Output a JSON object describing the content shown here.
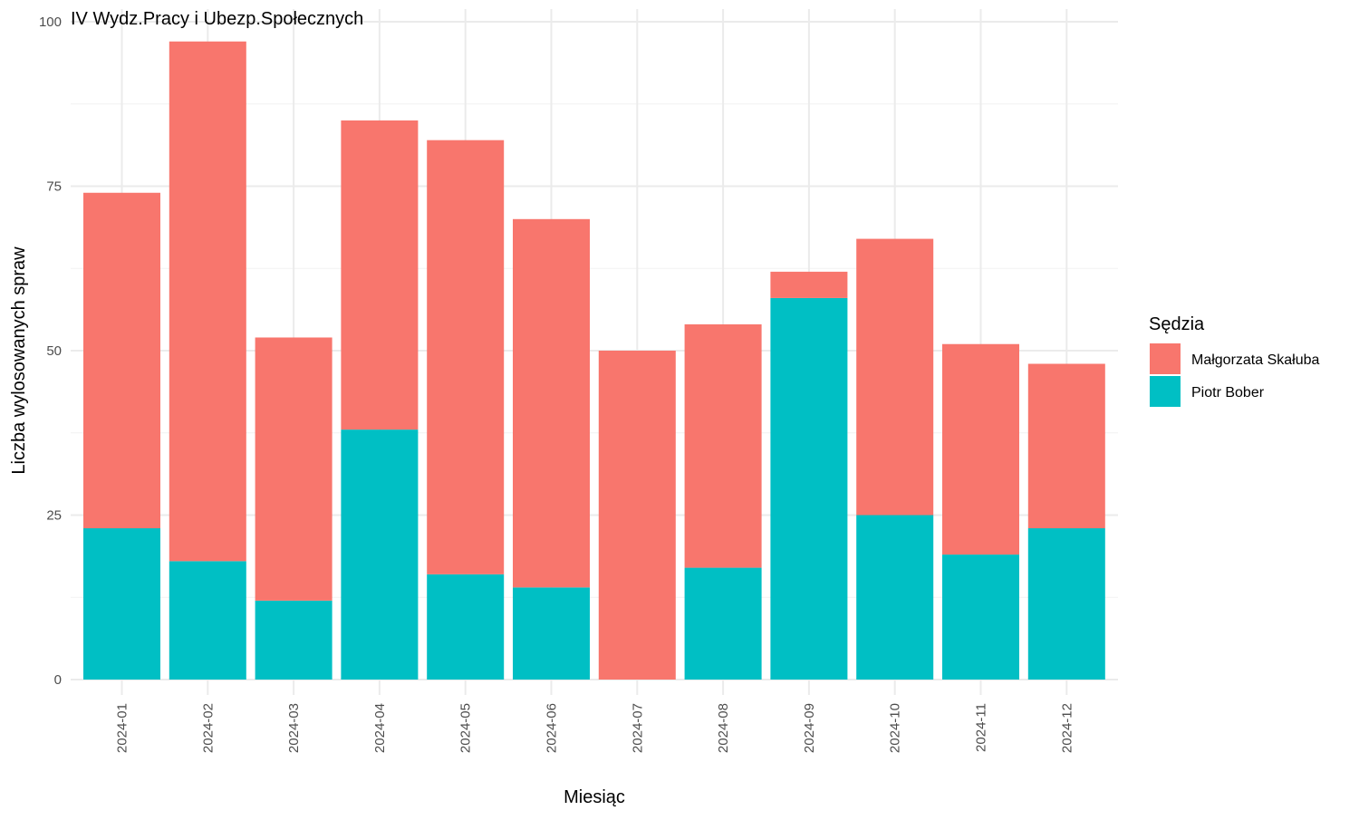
{
  "chart_data": {
    "type": "bar",
    "stacked": true,
    "title": "IV Wydz.Pracy i Ubezp.Społecznych",
    "xlabel": "Miesiąc",
    "ylabel": "Liczba wylosowanych spraw",
    "ylim": [
      0,
      100
    ],
    "yticks": [
      "0",
      "25",
      "50",
      "75",
      "100"
    ],
    "grid": true,
    "legend": {
      "title": "Sędzia",
      "position": "right"
    },
    "categories": [
      "2024-01",
      "2024-02",
      "2024-03",
      "2024-04",
      "2024-05",
      "2024-06",
      "2024-07",
      "2024-08",
      "2024-09",
      "2024-10",
      "2024-11",
      "2024-12"
    ],
    "series": [
      {
        "name": "Piotr Bober",
        "color": "#00BFC4",
        "values": [
          23,
          18,
          12,
          38,
          16,
          14,
          0,
          17,
          58,
          25,
          19,
          23
        ]
      },
      {
        "name": "Małgorzata Skałuba",
        "color": "#F8766D",
        "values": [
          51,
          79,
          40,
          47,
          66,
          56,
          50,
          37,
          4,
          42,
          32,
          25
        ]
      }
    ]
  }
}
